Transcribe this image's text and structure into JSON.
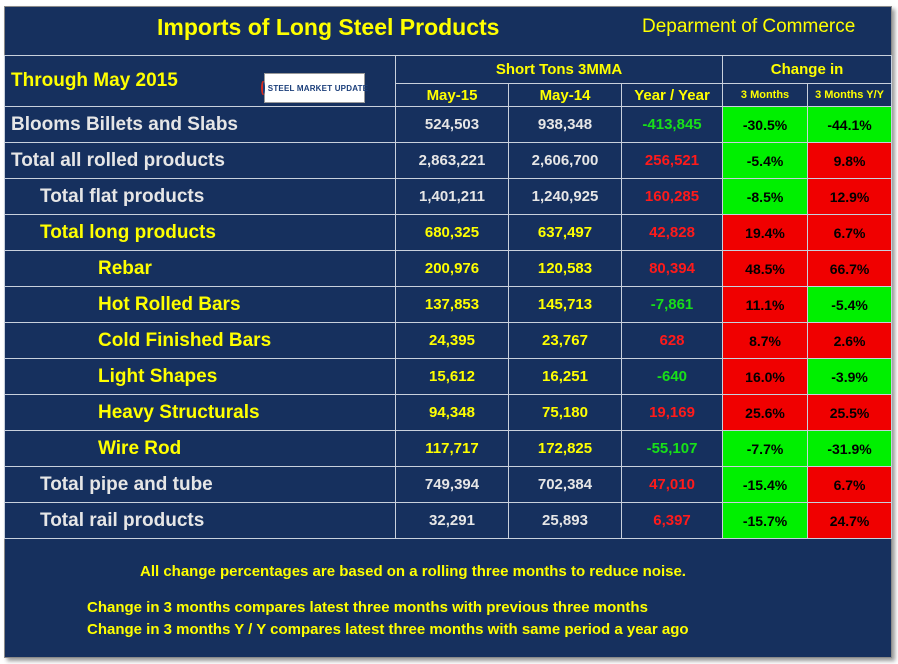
{
  "header": {
    "title": "Imports of Long Steel Products",
    "department": "Deparment of Commerce",
    "through": "Through May 2015",
    "logo_text": "STEEL MARKET UPDATE",
    "short_tons": "Short Tons 3MMA",
    "change_in": "Change in",
    "col_may15": "May-15",
    "col_may14": "May-14",
    "col_yoy": "Year / Year",
    "col_3m": "3 Months",
    "col_3myy": "3 Months Y/Y"
  },
  "rows": [
    {
      "label": "Blooms Billets and Slabs",
      "may15": "524,503",
      "may14": "938,348",
      "yoy": "-413,845",
      "m3": "-30.5%",
      "m3yy": "-44.1%"
    },
    {
      "label": "Total all rolled products",
      "may15": "2,863,221",
      "may14": "2,606,700",
      "yoy": "256,521",
      "m3": "-5.4%",
      "m3yy": "9.8%"
    },
    {
      "label": "Total flat products",
      "may15": "1,401,211",
      "may14": "1,240,925",
      "yoy": "160,285",
      "m3": "-8.5%",
      "m3yy": "12.9%"
    },
    {
      "label": "Total long products",
      "may15": "680,325",
      "may14": "637,497",
      "yoy": "42,828",
      "m3": "19.4%",
      "m3yy": "6.7%"
    },
    {
      "label": "Rebar",
      "may15": "200,976",
      "may14": "120,583",
      "yoy": "80,394",
      "m3": "48.5%",
      "m3yy": "66.7%"
    },
    {
      "label": "Hot Rolled Bars",
      "may15": "137,853",
      "may14": "145,713",
      "yoy": "-7,861",
      "m3": "11.1%",
      "m3yy": "-5.4%"
    },
    {
      "label": "Cold Finished Bars",
      "may15": "24,395",
      "may14": "23,767",
      "yoy": "628",
      "m3": "8.7%",
      "m3yy": "2.6%"
    },
    {
      "label": "Light Shapes",
      "may15": "15,612",
      "may14": "16,251",
      "yoy": "-640",
      "m3": "16.0%",
      "m3yy": "-3.9%"
    },
    {
      "label": "Heavy Structurals",
      "may15": "94,348",
      "may14": "75,180",
      "yoy": "19,169",
      "m3": "25.6%",
      "m3yy": "25.5%"
    },
    {
      "label": "Wire Rod",
      "may15": "117,717",
      "may14": "172,825",
      "yoy": "-55,107",
      "m3": "-7.7%",
      "m3yy": "-31.9%"
    },
    {
      "label": "Total pipe and tube",
      "may15": "749,394",
      "may14": "702,384",
      "yoy": "47,010",
      "m3": "-15.4%",
      "m3yy": "6.7%"
    },
    {
      "label": "Total rail products",
      "may15": "32,291",
      "may14": "25,893",
      "yoy": "6,397",
      "m3": "-15.7%",
      "m3yy": "24.7%"
    }
  ],
  "notes": {
    "line1": "All change percentages are based on a rolling three months to reduce noise.",
    "line2": "Change in 3 months compares latest three months with previous three months",
    "line3": "Change in 3 months  Y / Y compares latest three months with same period a year ago"
  },
  "colors": {
    "background": "#16305e",
    "header_text": "#ffff00",
    "increase": "#f00000",
    "decrease": "#00f000"
  }
}
